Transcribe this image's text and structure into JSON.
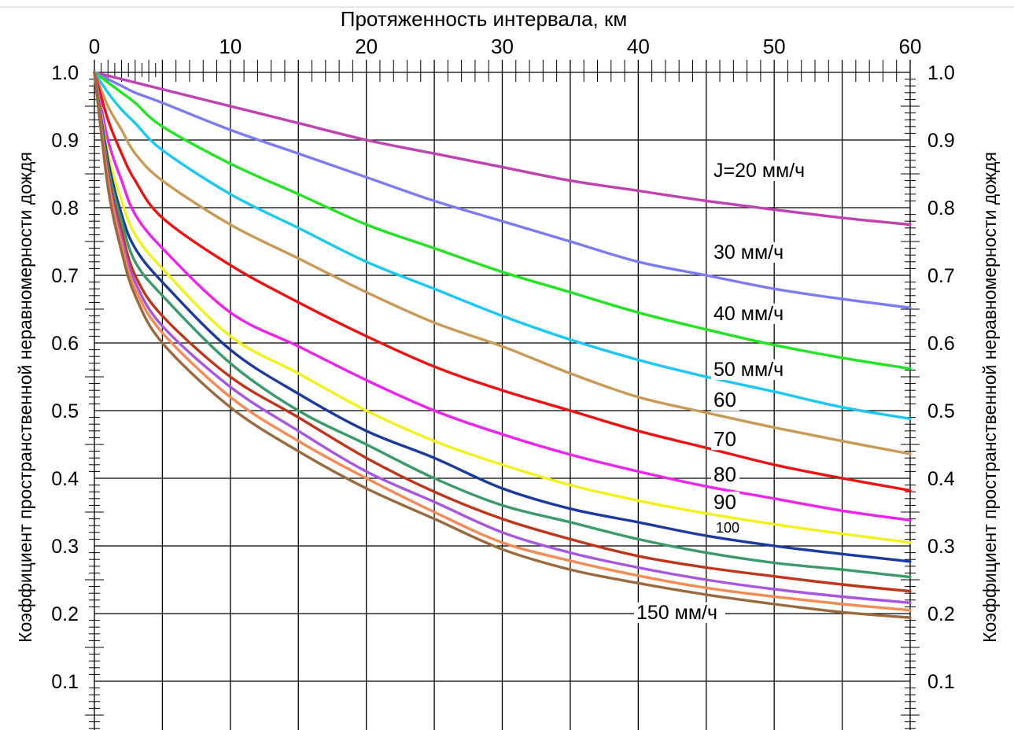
{
  "chart_data": {
    "type": "line",
    "title": "",
    "xlabel": "Протяженность интервала, км",
    "ylabel_left": "Коэффициент пространственной неравномерности дождя",
    "ylabel_right": "Коэффициент пространственной неравномерности дождя",
    "xlim": [
      0,
      60
    ],
    "ylim": [
      0,
      1.0
    ],
    "x_ticks": [
      "0",
      "10",
      "20",
      "30",
      "40",
      "50",
      "60"
    ],
    "y_ticks": [
      "0.1",
      "0.2",
      "0.3",
      "0.4",
      "0.5",
      "0.6",
      "0.7",
      "0.8",
      "0.9",
      "1.0"
    ],
    "grid": true,
    "x": [
      0,
      1,
      2,
      3,
      5,
      10,
      15,
      20,
      25,
      30,
      35,
      40,
      45,
      50,
      55,
      60
    ],
    "series": [
      {
        "name": "J=20 мм/ч",
        "color": "#c042b0",
        "values": [
          1.0,
          0.995,
          0.99,
          0.985,
          0.975,
          0.95,
          0.925,
          0.9,
          0.88,
          0.86,
          0.84,
          0.825,
          0.81,
          0.797,
          0.785,
          0.775
        ]
      },
      {
        "name": "30 мм/ч",
        "color": "#7b7bf5",
        "values": [
          1.0,
          0.99,
          0.98,
          0.97,
          0.955,
          0.915,
          0.88,
          0.845,
          0.81,
          0.78,
          0.75,
          0.72,
          0.7,
          0.68,
          0.665,
          0.652
        ]
      },
      {
        "name": "40 мм/ч",
        "color": "#22e422",
        "values": [
          1.0,
          0.985,
          0.97,
          0.955,
          0.92,
          0.865,
          0.82,
          0.775,
          0.74,
          0.705,
          0.675,
          0.645,
          0.62,
          0.597,
          0.578,
          0.562
        ]
      },
      {
        "name": "50 мм/ч",
        "color": "#1ac8f5",
        "values": [
          1.0,
          0.97,
          0.945,
          0.925,
          0.885,
          0.82,
          0.77,
          0.72,
          0.68,
          0.64,
          0.605,
          0.575,
          0.55,
          0.528,
          0.505,
          0.488
        ]
      },
      {
        "name": "60",
        "color": "#c99a55",
        "values": [
          1.0,
          0.95,
          0.915,
          0.88,
          0.84,
          0.775,
          0.725,
          0.675,
          0.63,
          0.595,
          0.555,
          0.52,
          0.497,
          0.475,
          0.455,
          0.436
        ]
      },
      {
        "name": "70",
        "color": "#ee1111",
        "values": [
          1.0,
          0.93,
          0.88,
          0.84,
          0.785,
          0.715,
          0.66,
          0.61,
          0.565,
          0.53,
          0.5,
          0.47,
          0.445,
          0.42,
          0.4,
          0.382
        ]
      },
      {
        "name": "80",
        "color": "#ee22ee",
        "values": [
          1.0,
          0.9,
          0.84,
          0.79,
          0.74,
          0.645,
          0.595,
          0.545,
          0.5,
          0.465,
          0.435,
          0.41,
          0.388,
          0.37,
          0.352,
          0.338
        ]
      },
      {
        "name": "90",
        "color": "#f2f21a",
        "values": [
          1.0,
          0.88,
          0.81,
          0.76,
          0.71,
          0.61,
          0.555,
          0.5,
          0.455,
          0.42,
          0.39,
          0.367,
          0.348,
          0.332,
          0.318,
          0.305
        ]
      },
      {
        "name": "100",
        "color": "#1b3a9e",
        "values": [
          1.0,
          0.87,
          0.79,
          0.74,
          0.69,
          0.59,
          0.525,
          0.47,
          0.43,
          0.385,
          0.355,
          0.335,
          0.315,
          0.3,
          0.288,
          0.277
        ]
      },
      {
        "name": "",
        "color": "#3a9a6a",
        "values": [
          1.0,
          0.86,
          0.78,
          0.72,
          0.67,
          0.57,
          0.5,
          0.45,
          0.4,
          0.36,
          0.335,
          0.31,
          0.29,
          0.275,
          0.265,
          0.254
        ]
      },
      {
        "name": "",
        "color": "#c0351a",
        "values": [
          1.0,
          0.85,
          0.765,
          0.7,
          0.64,
          0.55,
          0.49,
          0.43,
          0.38,
          0.34,
          0.31,
          0.285,
          0.268,
          0.255,
          0.243,
          0.233
        ]
      },
      {
        "name": "",
        "color": "#a855e0",
        "values": [
          1.0,
          0.845,
          0.755,
          0.69,
          0.625,
          0.535,
          0.47,
          0.41,
          0.365,
          0.32,
          0.29,
          0.268,
          0.25,
          0.236,
          0.225,
          0.216
        ]
      },
      {
        "name": "",
        "color": "#f58a55",
        "values": [
          1.0,
          0.84,
          0.745,
          0.68,
          0.615,
          0.52,
          0.455,
          0.4,
          0.35,
          0.305,
          0.278,
          0.256,
          0.238,
          0.225,
          0.214,
          0.205
        ]
      },
      {
        "name": "150 мм/ч",
        "color": "#9a6a3e",
        "values": [
          1.0,
          0.83,
          0.735,
          0.67,
          0.6,
          0.505,
          0.44,
          0.385,
          0.34,
          0.295,
          0.265,
          0.245,
          0.228,
          0.214,
          0.202,
          0.194
        ]
      }
    ],
    "annotations": [
      "J=20 мм/ч",
      "30 мм/ч",
      "40 мм/ч",
      "50 мм/ч",
      "60",
      "70",
      "80",
      "90",
      "100",
      "150 мм/ч"
    ]
  }
}
